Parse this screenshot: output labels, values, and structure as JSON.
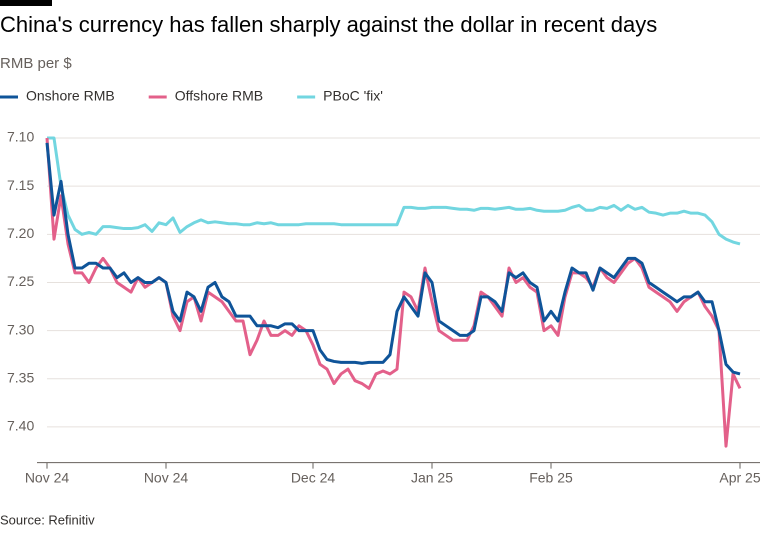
{
  "chart_data": {
    "type": "line",
    "title": "China's currency has fallen sharply against the dollar in recent days",
    "subtitle": "RMB per $",
    "source": "Source: Refinitiv",
    "y_inverted": true,
    "grid": true,
    "legend": "top",
    "xlim": [
      0,
      99
    ],
    "xticks": [
      {
        "value": 0,
        "label": "Nov 24"
      },
      {
        "value": 17,
        "label": "Nov 24"
      },
      {
        "value": 38,
        "label": "Dec 24"
      },
      {
        "value": 55,
        "label": "Jan 25"
      },
      {
        "value": 72,
        "label": "Feb 25"
      },
      {
        "value": 99,
        "label": "Apr 25"
      }
    ],
    "ylim": [
      7.085,
      7.435
    ],
    "yticks": [
      {
        "value": 7.1,
        "label": "7.10"
      },
      7.15,
      {
        "value": 7.2,
        "label": "7.20"
      },
      7.25,
      {
        "value": 7.3,
        "label": "7.30"
      },
      7.35,
      {
        "value": 7.4,
        "label": "7.40"
      }
    ],
    "series": [
      {
        "name": "Onshore RMB",
        "color": "#0f5499",
        "values": [
          7.105,
          7.18,
          7.145,
          7.2,
          7.235,
          7.235,
          7.23,
          7.23,
          7.235,
          7.235,
          7.245,
          7.24,
          7.25,
          7.245,
          7.25,
          7.25,
          7.245,
          7.25,
          7.28,
          7.29,
          7.26,
          7.265,
          7.28,
          7.255,
          7.25,
          7.265,
          7.27,
          7.285,
          7.285,
          7.285,
          7.295,
          7.295,
          7.295,
          7.297,
          7.293,
          7.293,
          7.3,
          7.3,
          7.3,
          7.32,
          7.33,
          7.332,
          7.333,
          7.333,
          7.333,
          7.334,
          7.333,
          7.333,
          7.333,
          7.325,
          7.28,
          7.265,
          7.275,
          7.285,
          7.24,
          7.25,
          7.29,
          7.295,
          7.3,
          7.305,
          7.305,
          7.3,
          7.265,
          7.265,
          7.27,
          7.28,
          7.24,
          7.245,
          7.24,
          7.25,
          7.255,
          7.29,
          7.28,
          7.29,
          7.26,
          7.235,
          7.24,
          7.24,
          7.258,
          7.235,
          7.24,
          7.245,
          7.235,
          7.225,
          7.225,
          7.23,
          7.25,
          7.255,
          7.26,
          7.265,
          7.27,
          7.265,
          7.265,
          7.26,
          7.27,
          7.27,
          7.3,
          7.335,
          7.343,
          7.345
        ]
      },
      {
        "name": "Offshore RMB",
        "color": "#e3608a",
        "values": [
          7.1,
          7.205,
          7.16,
          7.21,
          7.24,
          7.24,
          7.25,
          7.235,
          7.225,
          7.235,
          7.25,
          7.255,
          7.26,
          7.245,
          7.255,
          7.25,
          7.245,
          7.25,
          7.285,
          7.3,
          7.27,
          7.265,
          7.29,
          7.26,
          7.265,
          7.27,
          7.28,
          7.29,
          7.29,
          7.325,
          7.31,
          7.29,
          7.305,
          7.305,
          7.3,
          7.305,
          7.295,
          7.3,
          7.315,
          7.335,
          7.34,
          7.355,
          7.345,
          7.34,
          7.352,
          7.355,
          7.36,
          7.345,
          7.342,
          7.345,
          7.34,
          7.26,
          7.265,
          7.28,
          7.235,
          7.27,
          7.3,
          7.305,
          7.31,
          7.31,
          7.31,
          7.295,
          7.26,
          7.265,
          7.275,
          7.285,
          7.235,
          7.25,
          7.245,
          7.255,
          7.26,
          7.3,
          7.295,
          7.305,
          7.265,
          7.24,
          7.24,
          7.245,
          7.255,
          7.235,
          7.245,
          7.25,
          7.24,
          7.23,
          7.225,
          7.235,
          7.255,
          7.26,
          7.265,
          7.27,
          7.28,
          7.27,
          7.265,
          7.26,
          7.275,
          7.285,
          7.3,
          7.42,
          7.345,
          7.36
        ]
      },
      {
        "name": "PBoC 'fix'",
        "color": "#72d6e0",
        "values": [
          7.1,
          7.1,
          7.15,
          7.18,
          7.195,
          7.2,
          7.198,
          7.2,
          7.192,
          7.192,
          7.193,
          7.194,
          7.194,
          7.193,
          7.19,
          7.197,
          7.188,
          7.19,
          7.183,
          7.198,
          7.192,
          7.188,
          7.185,
          7.188,
          7.187,
          7.188,
          7.189,
          7.189,
          7.19,
          7.19,
          7.188,
          7.189,
          7.188,
          7.19,
          7.19,
          7.19,
          7.19,
          7.189,
          7.189,
          7.189,
          7.189,
          7.189,
          7.19,
          7.19,
          7.19,
          7.19,
          7.19,
          7.19,
          7.19,
          7.19,
          7.19,
          7.172,
          7.172,
          7.173,
          7.173,
          7.172,
          7.172,
          7.172,
          7.173,
          7.174,
          7.174,
          7.175,
          7.173,
          7.173,
          7.174,
          7.173,
          7.172,
          7.174,
          7.174,
          7.173,
          7.175,
          7.176,
          7.176,
          7.176,
          7.175,
          7.172,
          7.17,
          7.175,
          7.175,
          7.172,
          7.173,
          7.17,
          7.175,
          7.17,
          7.174,
          7.172,
          7.177,
          7.178,
          7.18,
          7.178,
          7.178,
          7.176,
          7.178,
          7.178,
          7.18,
          7.187,
          7.2,
          7.205,
          7.208,
          7.21
        ]
      }
    ]
  }
}
